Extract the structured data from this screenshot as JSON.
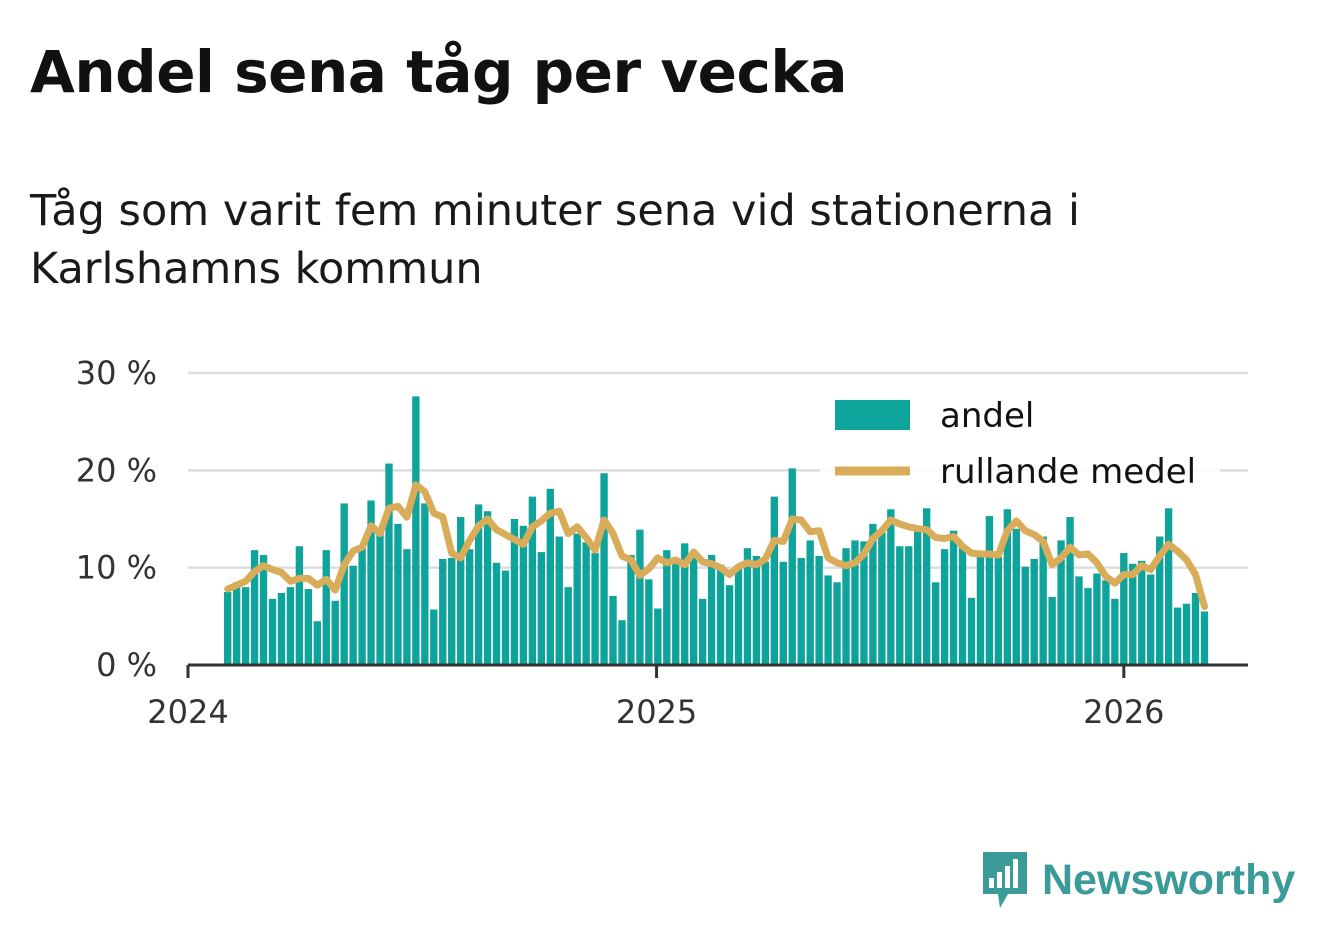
{
  "title": "Andel sena tåg per vecka",
  "subtitle": "Tåg som varit fem minuter sena vid stationerna i Karlshamns kommun",
  "brand": {
    "name": "Newsworthy",
    "color": "#3a9b98",
    "icon": "newsworthy-chart-bubble-icon"
  },
  "colors": {
    "bar": "#0ea39b",
    "line": "#d9ac5a",
    "grid": "#dddddd",
    "axis": "#333333"
  },
  "chart_data": {
    "type": "bar",
    "x_axis": {
      "type": "date",
      "min": "2024-01-01",
      "max": "2026-04-08",
      "ticks": [
        "2024",
        "2025",
        "2026"
      ]
    },
    "y_axis": {
      "min": 0,
      "max": 30,
      "ticks": [
        0,
        10,
        20,
        30
      ],
      "tick_labels": [
        "0 %",
        "10 %",
        "20 %",
        "30 %"
      ],
      "unit": "%"
    },
    "grid": true,
    "legend": {
      "placement": "top-right",
      "entries": [
        "andel",
        "rullande medel"
      ]
    },
    "first_week": "2024-02-01",
    "week_days": 7,
    "series": [
      {
        "name": "andel",
        "type": "bar",
        "values": [
          7.5,
          8.5,
          8.0,
          11.8,
          11.3,
          6.8,
          7.4,
          8.0,
          12.2,
          7.8,
          4.5,
          11.8,
          6.6,
          16.6,
          10.2,
          12.0,
          16.9,
          13.5,
          20.7,
          14.5,
          11.9,
          27.6,
          16.6,
          5.7,
          10.9,
          11.0,
          15.2,
          11.9,
          16.5,
          15.8,
          10.5,
          9.7,
          15.0,
          14.3,
          17.3,
          11.6,
          18.1,
          13.2,
          8.0,
          13.5,
          12.6,
          11.5,
          19.7,
          7.1,
          4.6,
          11.3,
          13.9,
          8.8,
          5.8,
          11.8,
          10.6,
          12.5,
          11.0,
          6.8,
          11.3,
          10.3,
          8.2,
          10.0,
          12.0,
          11.2,
          10.6,
          17.3,
          10.6,
          20.2,
          11.0,
          12.8,
          11.2,
          9.2,
          8.5,
          12.0,
          12.8,
          12.7,
          14.5,
          13.6,
          16.0,
          12.2,
          12.2,
          13.8,
          16.1,
          8.5,
          11.9,
          13.8,
          12.2,
          6.9,
          11.3,
          15.3,
          11.1,
          16.0,
          14.0,
          10.1,
          10.9,
          13.2,
          7.0,
          12.8,
          15.2,
          9.1,
          7.9,
          9.4,
          8.7,
          6.8,
          11.5,
          10.4,
          10.7,
          9.3,
          13.2,
          16.1,
          5.9,
          6.3,
          7.4,
          5.5
        ]
      },
      {
        "name": "rullande medel",
        "type": "line",
        "values": [
          7.8,
          8.2,
          8.6,
          9.6,
          10.2,
          9.8,
          9.5,
          8.6,
          8.9,
          8.9,
          8.2,
          8.8,
          7.7,
          10.3,
          11.7,
          12.1,
          14.3,
          13.5,
          16.1,
          16.3,
          15.2,
          18.5,
          17.8,
          15.6,
          15.2,
          11.5,
          11.0,
          12.8,
          14.3,
          15.0,
          13.9,
          13.4,
          12.9,
          12.4,
          14.2,
          14.8,
          15.6,
          15.8,
          13.5,
          14.2,
          13.1,
          11.8,
          14.9,
          13.5,
          11.2,
          10.8,
          9.2,
          9.9,
          11.0,
          10.5,
          10.8,
          10.3,
          11.6,
          10.6,
          10.4,
          10.0,
          9.3,
          10.1,
          10.5,
          10.3,
          10.9,
          12.8,
          12.7,
          15.0,
          14.9,
          13.7,
          13.8,
          11.0,
          10.5,
          10.2,
          10.5,
          11.4,
          13.0,
          13.8,
          14.9,
          14.5,
          14.2,
          14.0,
          13.9,
          13.1,
          13.0,
          13.2,
          12.2,
          11.5,
          11.4,
          11.4,
          11.3,
          13.8,
          14.8,
          13.8,
          13.4,
          12.7,
          10.3,
          11.0,
          12.1,
          11.3,
          11.4,
          10.5,
          9.1,
          8.4,
          9.3,
          9.3,
          10.2,
          9.8,
          11.2,
          12.4,
          11.7,
          10.8,
          9.3,
          6.0
        ]
      }
    ]
  }
}
